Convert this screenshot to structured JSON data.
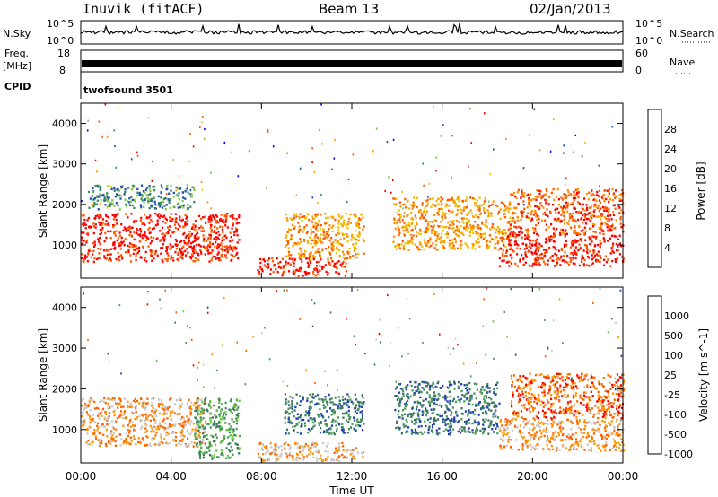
{
  "header": {
    "station": "Inuvik (fitACF)",
    "beam": "Beam 13",
    "date": "02/Jan/2013"
  },
  "status_panels": {
    "nsky_label": "N.Sky",
    "nsky_ticks": [
      "10^5",
      "10^0"
    ],
    "nsearch_label": "N.Search",
    "nsearch_ticks": [
      "10^5",
      "10^0"
    ],
    "freq_label": "Freq.",
    "freq_unit": "[MHz]",
    "freq_ticks": [
      "18",
      "8"
    ],
    "nave_label": "Nave",
    "nave_ticks": [
      "60",
      "0"
    ],
    "cpid_label": "CPID",
    "cpid_value": "twofsound 3501"
  },
  "chart_data": [
    {
      "type": "heatmap",
      "title": "",
      "xlabel": "",
      "ylabel": "Slant Range [km]",
      "x_ticks": [
        "00:00",
        "04:00",
        "08:00",
        "12:00",
        "16:00",
        "20:00",
        "00:00"
      ],
      "y_ticks": [
        "1000",
        "2000",
        "3000",
        "4000"
      ],
      "xlim_hours": [
        0,
        24
      ],
      "ylim_km": [
        180,
        4500
      ],
      "colorbar": {
        "label": "Power [dB]",
        "ticks": [
          "28",
          "24",
          "20",
          "16",
          "12",
          "8",
          "4"
        ],
        "colors": [
          "#ff0000",
          "#ff5a00",
          "#ff9600",
          "#f0c000",
          "#7ec84a",
          "#3c8c5a",
          "#2050b0",
          "#0000ff"
        ]
      },
      "regions": [
        {
          "t0": 0.0,
          "t1": 7.0,
          "r0": 600,
          "r1": 1800,
          "level": 28
        },
        {
          "t0": 0.3,
          "t1": 5.0,
          "r0": 1900,
          "r1": 2500,
          "level": 8
        },
        {
          "t0": 7.8,
          "t1": 11.8,
          "r0": 250,
          "r1": 700,
          "level": 28
        },
        {
          "t0": 9.0,
          "t1": 12.5,
          "r0": 700,
          "r1": 1800,
          "level": 20
        },
        {
          "t0": 13.8,
          "t1": 19.0,
          "r0": 900,
          "r1": 2200,
          "level": 20
        },
        {
          "t0": 18.5,
          "t1": 24.0,
          "r0": 500,
          "r1": 1300,
          "level": 28
        },
        {
          "t0": 19.0,
          "t1": 24.0,
          "r0": 1300,
          "r1": 2400,
          "level": 24
        }
      ]
    },
    {
      "type": "heatmap",
      "title": "",
      "xlabel": "Time UT",
      "ylabel": "Slant Range [km]",
      "x_ticks": [
        "00:00",
        "04:00",
        "08:00",
        "12:00",
        "16:00",
        "20:00",
        "00:00"
      ],
      "y_ticks": [
        "1000",
        "2000",
        "3000",
        "4000"
      ],
      "xlim_hours": [
        0,
        24
      ],
      "ylim_km": [
        180,
        4500
      ],
      "colorbar": {
        "label": "Velocity [m s^-1]",
        "ticks": [
          "1000",
          "500",
          "100",
          "25",
          "-25",
          "-100",
          "-500",
          "-1000"
        ],
        "colors": [
          "#2040b0",
          "#3c7860",
          "#4a9a5a",
          "#6ac840",
          "#c8c8c8",
          "#ff9600",
          "#ff6400",
          "#ff0000"
        ]
      },
      "regions": [
        {
          "t0": 0.0,
          "t1": 5.5,
          "r0": 600,
          "r1": 1800,
          "level": -100
        },
        {
          "t0": 5.0,
          "t1": 7.0,
          "r0": 300,
          "r1": 1800,
          "level": 100
        },
        {
          "t0": 7.8,
          "t1": 12.5,
          "r0": 250,
          "r1": 700,
          "level": -100
        },
        {
          "t0": 9.0,
          "t1": 12.5,
          "r0": 900,
          "r1": 1900,
          "level": 500
        },
        {
          "t0": 13.8,
          "t1": 18.5,
          "r0": 900,
          "r1": 2200,
          "level": 500
        },
        {
          "t0": 18.5,
          "t1": 24.0,
          "r0": 500,
          "r1": 1300,
          "level": -100
        },
        {
          "t0": 19.0,
          "t1": 24.0,
          "r0": 1300,
          "r1": 2400,
          "level": -500
        }
      ]
    }
  ]
}
